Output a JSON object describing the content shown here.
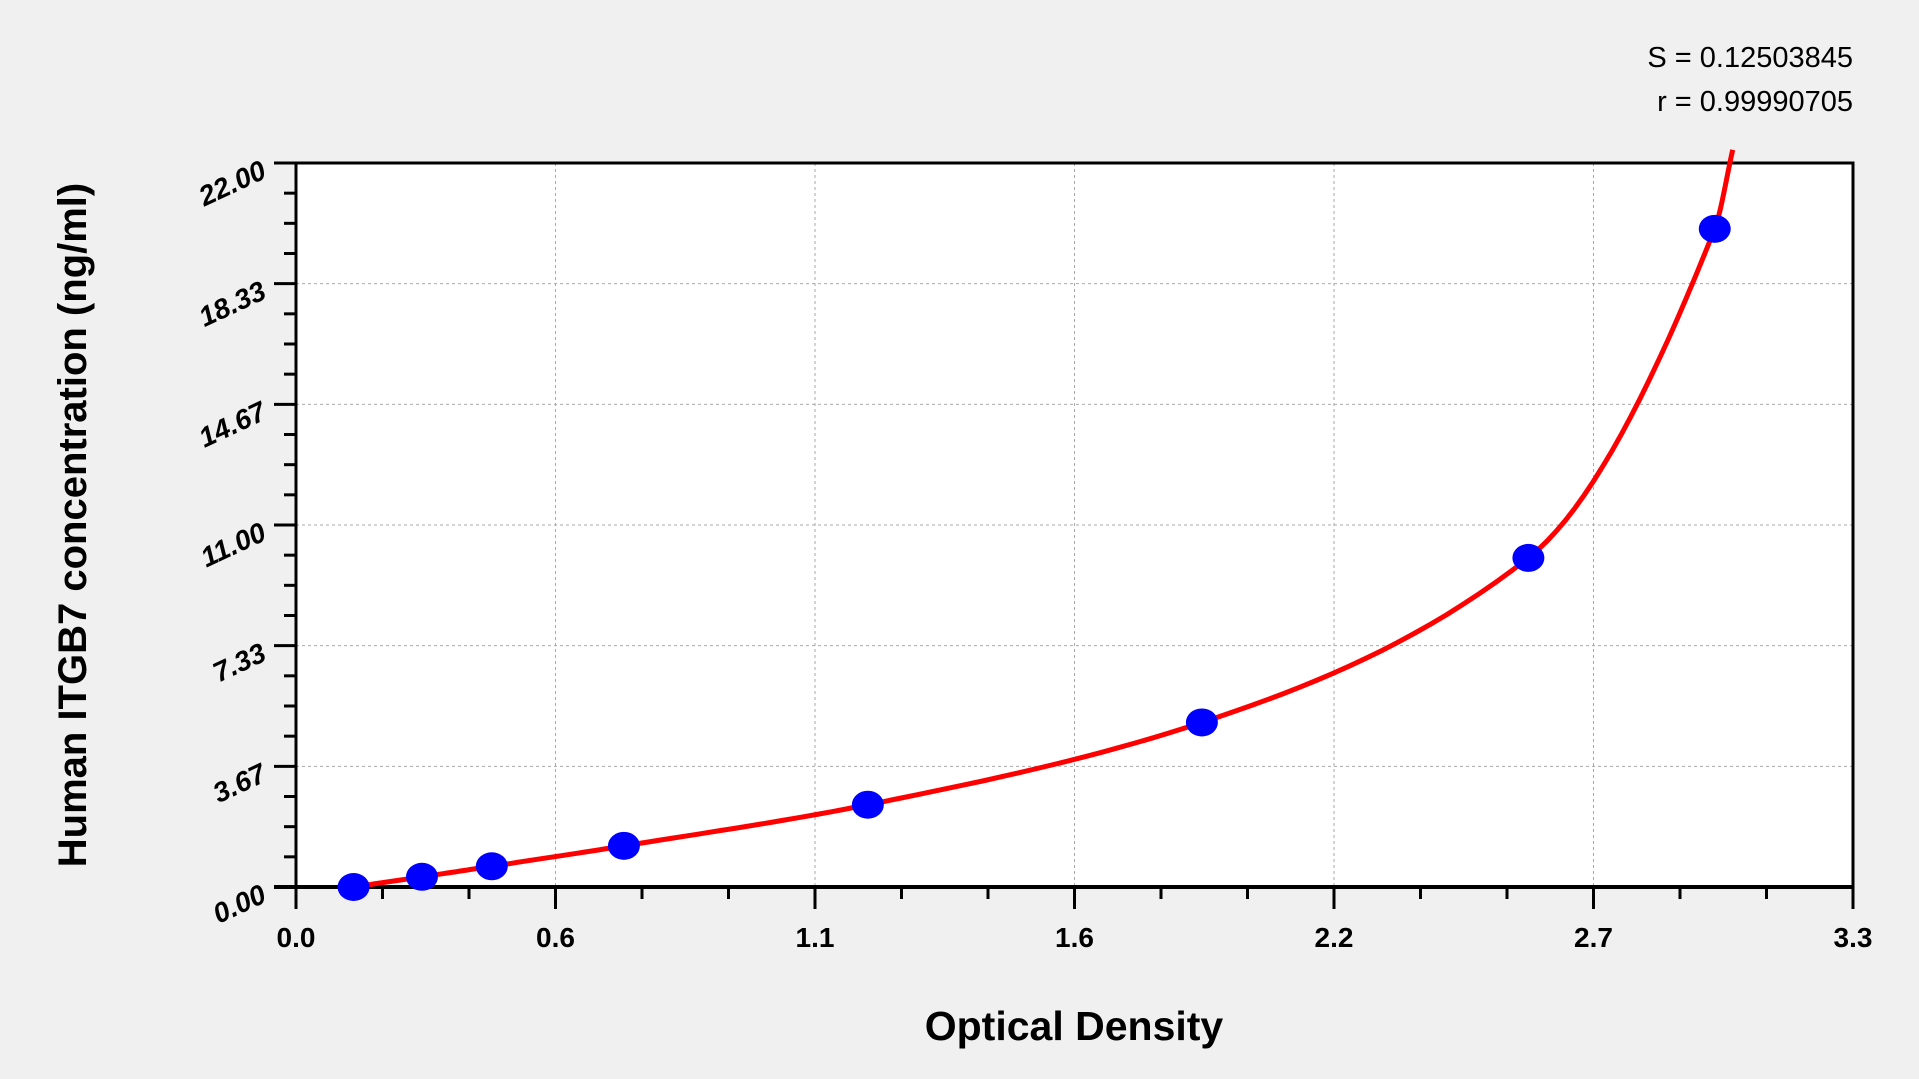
{
  "stats": {
    "s": "S = 0.12503845",
    "r": "r = 0.99990705"
  },
  "chart_data": {
    "type": "scatter",
    "xlabel": "Optical Density",
    "ylabel": "Human ITGB7 concentration (ng/ml)",
    "xlim": [
      0,
      3.3
    ],
    "ylim": [
      0,
      22
    ],
    "xticks": [
      "0.0",
      "0.6",
      "1.1",
      "1.6",
      "2.2",
      "2.7",
      "3.3"
    ],
    "yticks": [
      "0.00",
      "3.67",
      "7.33",
      "11.00",
      "14.67",
      "18.33",
      "22.00"
    ],
    "grid": true,
    "series": [
      {
        "type": "scatter",
        "color": "#0000ff",
        "x": [
          0.122,
          0.267,
          0.415,
          0.695,
          1.212,
          1.92,
          2.612,
          3.007
        ],
        "y": [
          0,
          0.31,
          0.63,
          1.25,
          2.5,
          5,
          10,
          20
        ]
      },
      {
        "type": "line",
        "color": "#ff0000",
        "x": [
          0.122,
          0.267,
          0.415,
          0.695,
          1.212,
          1.92,
          2.612,
          3.007,
          3.045
        ],
        "y": [
          0,
          0.31,
          0.63,
          1.25,
          2.5,
          5,
          10,
          20,
          22.4
        ]
      }
    ]
  }
}
